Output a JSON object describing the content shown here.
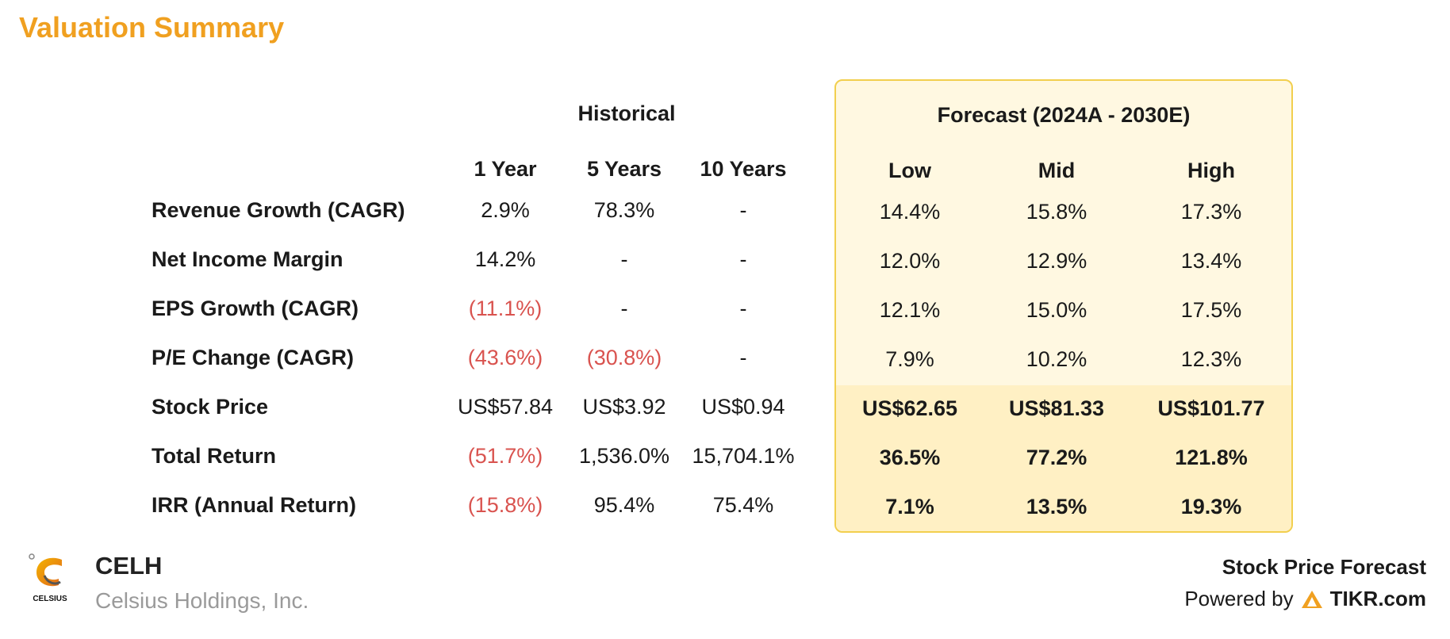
{
  "title": "Valuation Summary",
  "historical_header": "Historical",
  "forecast_header": "Forecast (2024A - 2030E)",
  "historical_columns": [
    "1 Year",
    "5 Years",
    "10 Years"
  ],
  "forecast_columns": [
    "Low",
    "Mid",
    "High"
  ],
  "rows": [
    {
      "label": "Revenue Growth (CAGR)",
      "historical": [
        "2.9%",
        "78.3%",
        "-"
      ],
      "forecast": [
        "14.4%",
        "15.8%",
        "17.3%"
      ]
    },
    {
      "label": "Net Income Margin",
      "historical": [
        "14.2%",
        "-",
        "-"
      ],
      "forecast": [
        "12.0%",
        "12.9%",
        "13.4%"
      ]
    },
    {
      "label": "EPS Growth (CAGR)",
      "historical": [
        "(11.1%)",
        "-",
        "-"
      ],
      "forecast": [
        "12.1%",
        "15.0%",
        "17.5%"
      ]
    },
    {
      "label": "P/E Change (CAGR)",
      "historical": [
        "(43.6%)",
        "(30.8%)",
        "-"
      ],
      "forecast": [
        "7.9%",
        "10.2%",
        "12.3%"
      ]
    },
    {
      "label": "Stock Price",
      "historical": [
        "US$57.84",
        "US$3.92",
        "US$0.94"
      ],
      "forecast": [
        "US$62.65",
        "US$81.33",
        "US$101.77"
      ]
    },
    {
      "label": "Total Return",
      "historical": [
        "(51.7%)",
        "1,536.0%",
        "15,704.1%"
      ],
      "forecast": [
        "36.5%",
        "77.2%",
        "121.8%"
      ]
    },
    {
      "label": "IRR (Annual Return)",
      "historical": [
        "(15.8%)",
        "95.4%",
        "75.4%"
      ],
      "forecast": [
        "7.1%",
        "13.5%",
        "19.3%"
      ]
    }
  ],
  "footer": {
    "ticker": "CELH",
    "company": "Celsius Holdings, Inc.",
    "logo_text": "CELSIUS",
    "forecast_label": "Stock Price Forecast",
    "powered_by": "Powered by",
    "brand": "TIKR.com"
  },
  "colors": {
    "title": "#f0a020",
    "negative": "#d9534f",
    "forecast_bg": "#fff8e1",
    "forecast_border": "#f2cf4e",
    "forecast_band": "#fff0c4"
  }
}
